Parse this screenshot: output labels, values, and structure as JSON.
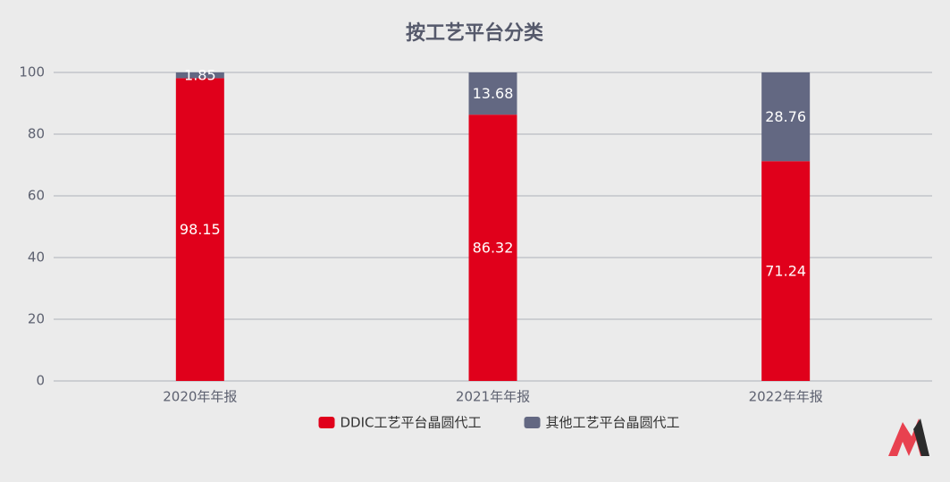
{
  "chart_data": {
    "type": "stacked-bar",
    "title": "按工艺平台分类",
    "categories": [
      "2020年年报",
      "2021年年报",
      "2022年年报"
    ],
    "series": [
      {
        "name": "DDIC工艺平台晶圆代工",
        "color": "#e0001b",
        "values": [
          98.15,
          86.32,
          71.24
        ]
      },
      {
        "name": "其他工艺平台晶圆代工",
        "color": "#636882",
        "values": [
          1.85,
          13.68,
          28.76
        ]
      }
    ],
    "ylim": [
      0,
      100
    ],
    "yticks": [
      0,
      20,
      40,
      60,
      80,
      100
    ],
    "grid": true,
    "legend": "bottom"
  }
}
